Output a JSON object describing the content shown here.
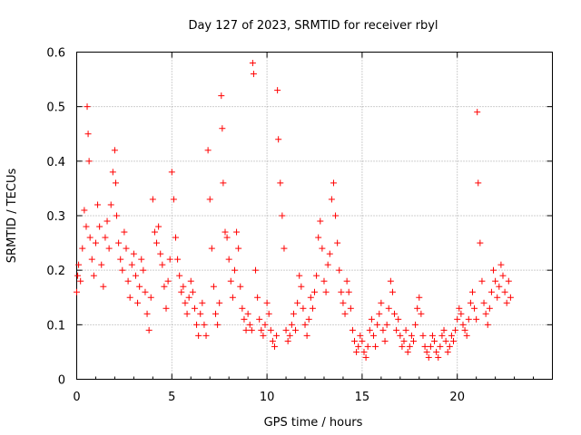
{
  "chart_data": {
    "type": "scatter",
    "title": "Day 127 of 2023, SRMTID for receiver rbyl",
    "xlabel": "GPS time / hours",
    "ylabel": "SRMTID / TECUs",
    "xlim": [
      0,
      25
    ],
    "ylim": [
      0,
      0.6
    ],
    "xticks": [
      0,
      5,
      10,
      15,
      20
    ],
    "yticks": [
      0,
      0.1,
      0.2,
      0.3,
      0.4,
      0.5,
      0.6
    ],
    "xtick_labels": [
      "0",
      "5",
      "10",
      "15",
      "20"
    ],
    "ytick_labels": [
      "0",
      "0.1",
      "0.2",
      "0.3",
      "0.4",
      "0.5",
      "0.6"
    ],
    "grid": true,
    "marker": "+",
    "color": "#ff0000",
    "series": [
      {
        "name": "SRMTID",
        "x": [
          0.0,
          0.05,
          0.1,
          0.2,
          0.3,
          0.4,
          0.5,
          0.55,
          0.6,
          0.65,
          0.7,
          0.8,
          0.9,
          1.0,
          1.1,
          1.2,
          1.3,
          1.4,
          1.5,
          1.6,
          1.7,
          1.8,
          1.9,
          2.0,
          2.05,
          2.1,
          2.2,
          2.3,
          2.4,
          2.5,
          2.6,
          2.7,
          2.8,
          2.9,
          3.0,
          3.1,
          3.2,
          3.3,
          3.4,
          3.5,
          3.6,
          3.7,
          3.8,
          3.9,
          4.0,
          4.1,
          4.2,
          4.3,
          4.4,
          4.5,
          4.6,
          4.7,
          4.8,
          4.9,
          5.0,
          5.1,
          5.2,
          5.3,
          5.4,
          5.5,
          5.6,
          5.7,
          5.8,
          5.9,
          6.0,
          6.1,
          6.2,
          6.3,
          6.4,
          6.5,
          6.6,
          6.7,
          6.8,
          6.9,
          7.0,
          7.1,
          7.2,
          7.3,
          7.4,
          7.5,
          7.6,
          7.65,
          7.7,
          7.8,
          7.9,
          8.0,
          8.1,
          8.2,
          8.3,
          8.4,
          8.5,
          8.6,
          8.7,
          8.8,
          8.9,
          9.0,
          9.1,
          9.2,
          9.25,
          9.3,
          9.4,
          9.5,
          9.6,
          9.7,
          9.8,
          9.9,
          10.0,
          10.1,
          10.2,
          10.3,
          10.4,
          10.5,
          10.55,
          10.6,
          10.7,
          10.8,
          10.9,
          11.0,
          11.1,
          11.2,
          11.3,
          11.4,
          11.5,
          11.6,
          11.7,
          11.8,
          11.9,
          12.0,
          12.1,
          12.2,
          12.3,
          12.4,
          12.5,
          12.6,
          12.7,
          12.8,
          12.9,
          13.0,
          13.1,
          13.2,
          13.3,
          13.4,
          13.5,
          13.6,
          13.7,
          13.8,
          13.9,
          14.0,
          14.1,
          14.2,
          14.3,
          14.4,
          14.5,
          14.6,
          14.7,
          14.8,
          14.9,
          15.0,
          15.1,
          15.2,
          15.3,
          15.4,
          15.5,
          15.6,
          15.7,
          15.8,
          15.9,
          16.0,
          16.1,
          16.2,
          16.3,
          16.4,
          16.5,
          16.6,
          16.7,
          16.8,
          16.9,
          17.0,
          17.1,
          17.2,
          17.3,
          17.4,
          17.5,
          17.6,
          17.7,
          17.8,
          17.9,
          18.0,
          18.1,
          18.2,
          18.3,
          18.4,
          18.5,
          18.6,
          18.7,
          18.8,
          18.9,
          19.0,
          19.1,
          19.2,
          19.3,
          19.4,
          19.5,
          19.6,
          19.7,
          19.8,
          19.9,
          20.0,
          20.1,
          20.2,
          20.3,
          20.4,
          20.5,
          20.6,
          20.7,
          20.8,
          20.9,
          21.0,
          21.05,
          21.1,
          21.2,
          21.3,
          21.4,
          21.5,
          21.6,
          21.7,
          21.8,
          21.9,
          22.0,
          22.1,
          22.2,
          22.3,
          22.4,
          22.5,
          22.6,
          22.7,
          22.8
        ],
        "y": [
          0.16,
          0.19,
          0.21,
          0.18,
          0.24,
          0.31,
          0.28,
          0.5,
          0.45,
          0.4,
          0.26,
          0.22,
          0.19,
          0.25,
          0.32,
          0.28,
          0.21,
          0.17,
          0.26,
          0.29,
          0.24,
          0.32,
          0.38,
          0.42,
          0.36,
          0.3,
          0.25,
          0.22,
          0.2,
          0.27,
          0.24,
          0.18,
          0.15,
          0.21,
          0.23,
          0.19,
          0.14,
          0.17,
          0.22,
          0.2,
          0.16,
          0.12,
          0.09,
          0.15,
          0.33,
          0.27,
          0.25,
          0.28,
          0.23,
          0.21,
          0.17,
          0.13,
          0.18,
          0.22,
          0.38,
          0.33,
          0.26,
          0.22,
          0.19,
          0.16,
          0.17,
          0.14,
          0.12,
          0.15,
          0.18,
          0.16,
          0.13,
          0.1,
          0.08,
          0.12,
          0.14,
          0.1,
          0.08,
          0.42,
          0.33,
          0.24,
          0.17,
          0.12,
          0.1,
          0.14,
          0.52,
          0.46,
          0.36,
          0.27,
          0.26,
          0.22,
          0.18,
          0.15,
          0.2,
          0.27,
          0.24,
          0.17,
          0.13,
          0.11,
          0.09,
          0.12,
          0.1,
          0.09,
          0.58,
          0.56,
          0.2,
          0.15,
          0.11,
          0.09,
          0.08,
          0.1,
          0.14,
          0.12,
          0.09,
          0.07,
          0.06,
          0.08,
          0.53,
          0.44,
          0.36,
          0.3,
          0.24,
          0.09,
          0.07,
          0.08,
          0.1,
          0.12,
          0.09,
          0.14,
          0.19,
          0.17,
          0.13,
          0.1,
          0.08,
          0.11,
          0.15,
          0.13,
          0.16,
          0.19,
          0.26,
          0.29,
          0.24,
          0.18,
          0.16,
          0.21,
          0.23,
          0.33,
          0.36,
          0.3,
          0.25,
          0.2,
          0.16,
          0.14,
          0.12,
          0.18,
          0.16,
          0.13,
          0.09,
          0.07,
          0.05,
          0.06,
          0.08,
          0.07,
          0.05,
          0.04,
          0.06,
          0.09,
          0.11,
          0.08,
          0.06,
          0.1,
          0.12,
          0.14,
          0.09,
          0.07,
          0.1,
          0.13,
          0.18,
          0.16,
          0.12,
          0.09,
          0.11,
          0.08,
          0.06,
          0.07,
          0.09,
          0.05,
          0.06,
          0.08,
          0.07,
          0.1,
          0.13,
          0.15,
          0.12,
          0.08,
          0.06,
          0.05,
          0.04,
          0.06,
          0.08,
          0.07,
          0.05,
          0.04,
          0.06,
          0.08,
          0.09,
          0.07,
          0.05,
          0.06,
          0.08,
          0.07,
          0.09,
          0.11,
          0.13,
          0.12,
          0.1,
          0.09,
          0.08,
          0.11,
          0.14,
          0.16,
          0.13,
          0.11,
          0.49,
          0.36,
          0.25,
          0.18,
          0.14,
          0.12,
          0.1,
          0.13,
          0.16,
          0.2,
          0.18,
          0.15,
          0.17,
          0.21,
          0.19,
          0.16,
          0.14,
          0.18,
          0.15
        ]
      }
    ]
  }
}
